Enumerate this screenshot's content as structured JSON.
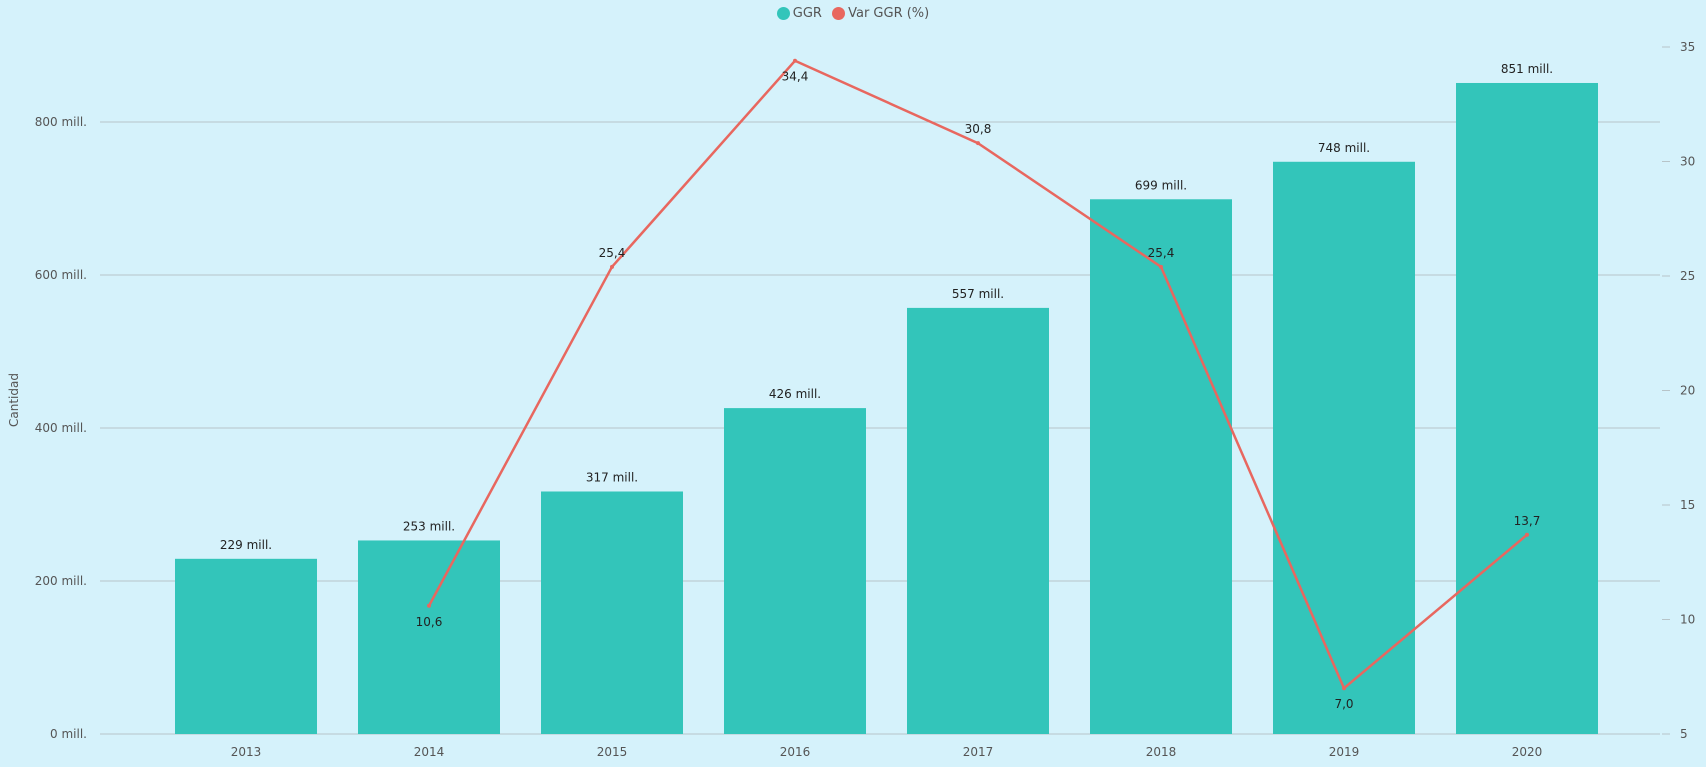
{
  "chart_data": {
    "type": "bar+line",
    "categories": [
      "2013",
      "2014",
      "2015",
      "2016",
      "2017",
      "2018",
      "2019",
      "2020"
    ],
    "series": [
      {
        "name": "GGR",
        "type": "bar",
        "axis": "left",
        "color": "#33c5ba",
        "values": [
          229,
          253,
          317,
          426,
          557,
          699,
          748,
          851
        ],
        "labels": [
          "229 mill.",
          "253 mill.",
          "317 mill.",
          "426 mill.",
          "557 mill.",
          "699 mill.",
          "748 mill.",
          "851 mill."
        ]
      },
      {
        "name": "Var GGR (%)",
        "type": "line",
        "axis": "right",
        "color": "#e8675f",
        "values": [
          null,
          10.6,
          25.4,
          34.4,
          30.8,
          25.4,
          7.0,
          13.7
        ],
        "labels": [
          "",
          "10,6",
          "25,4",
          "34,4",
          "30,8",
          "25,4",
          "7,0",
          "13,7"
        ],
        "label_pos": [
          "",
          "below",
          "above",
          "below",
          "above",
          "above",
          "below",
          "above"
        ]
      }
    ],
    "ylabel": "Cantidad",
    "y_left": {
      "range": [
        0,
        900
      ],
      "ticks": [
        0,
        200,
        400,
        600,
        800
      ],
      "tick_labels": [
        "0 mill.",
        "200 mill.",
        "400 mill.",
        "600 mill.",
        "800 mill."
      ],
      "unit": "millions"
    },
    "y_right": {
      "range": [
        5,
        35
      ],
      "ticks": [
        5,
        10,
        15,
        20,
        25,
        30,
        35
      ],
      "tick_labels": [
        "5",
        "10",
        "15",
        "20",
        "25",
        "30",
        "35"
      ]
    },
    "grid": true,
    "legend": "top-center"
  }
}
